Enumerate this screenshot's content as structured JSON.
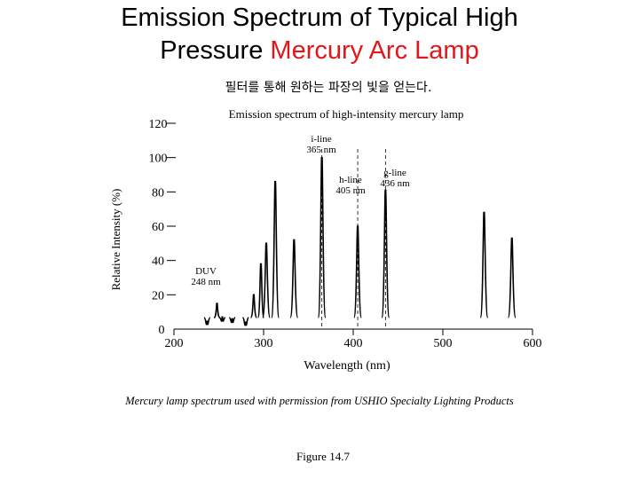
{
  "slide": {
    "title_line1": "Emission Spectrum of Typical High",
    "title_line2_prefix": "Pressure ",
    "title_line2_accent": "Mercury Arc Lamp",
    "subtitle": "필터를 통해 원하는 파장의 빛을 얻는다.",
    "caption": "Mercury lamp spectrum used with permission from USHIO Specialty Lighting Products",
    "figure_label": "Figure 14.7",
    "accent_color": "#e0181b"
  },
  "chart_data": {
    "type": "line",
    "title": "Emission spectrum of high-intensity mercury lamp",
    "xlabel": "Wavelength (nm)",
    "ylabel": "Relative Intensity (%)",
    "xlim": [
      200,
      600
    ],
    "ylim": [
      0,
      120
    ],
    "x_ticks": [
      200,
      300,
      400,
      500,
      600
    ],
    "y_ticks": [
      0,
      20,
      40,
      60,
      80,
      100,
      120
    ],
    "grid": false,
    "series": [
      {
        "peaks": [
          {
            "x": 237,
            "y": 4.5
          },
          {
            "x": 248,
            "y": 15
          },
          {
            "x": 254,
            "y": 7
          },
          {
            "x": 265,
            "y": 6
          },
          {
            "x": 280,
            "y": 4
          },
          {
            "x": 289,
            "y": 20
          },
          {
            "x": 297,
            "y": 38
          },
          {
            "x": 303,
            "y": 50
          },
          {
            "x": 313,
            "y": 86
          },
          {
            "x": 334,
            "y": 52
          },
          {
            "x": 365,
            "y": 100
          },
          {
            "x": 405,
            "y": 60
          },
          {
            "x": 436,
            "y": 81
          },
          {
            "x": 546,
            "y": 68
          },
          {
            "x": 577,
            "y": 53
          }
        ]
      }
    ],
    "annotations": [
      {
        "line1": "i-line",
        "line2": "365 nm",
        "x": 365
      },
      {
        "line1": "h-line",
        "line2": "405 nm",
        "x": 405
      },
      {
        "line1": "g-line",
        "line2": "436 nm",
        "x": 436
      },
      {
        "line1": "DUV",
        "line2": "248 nm",
        "x": 248
      }
    ]
  }
}
